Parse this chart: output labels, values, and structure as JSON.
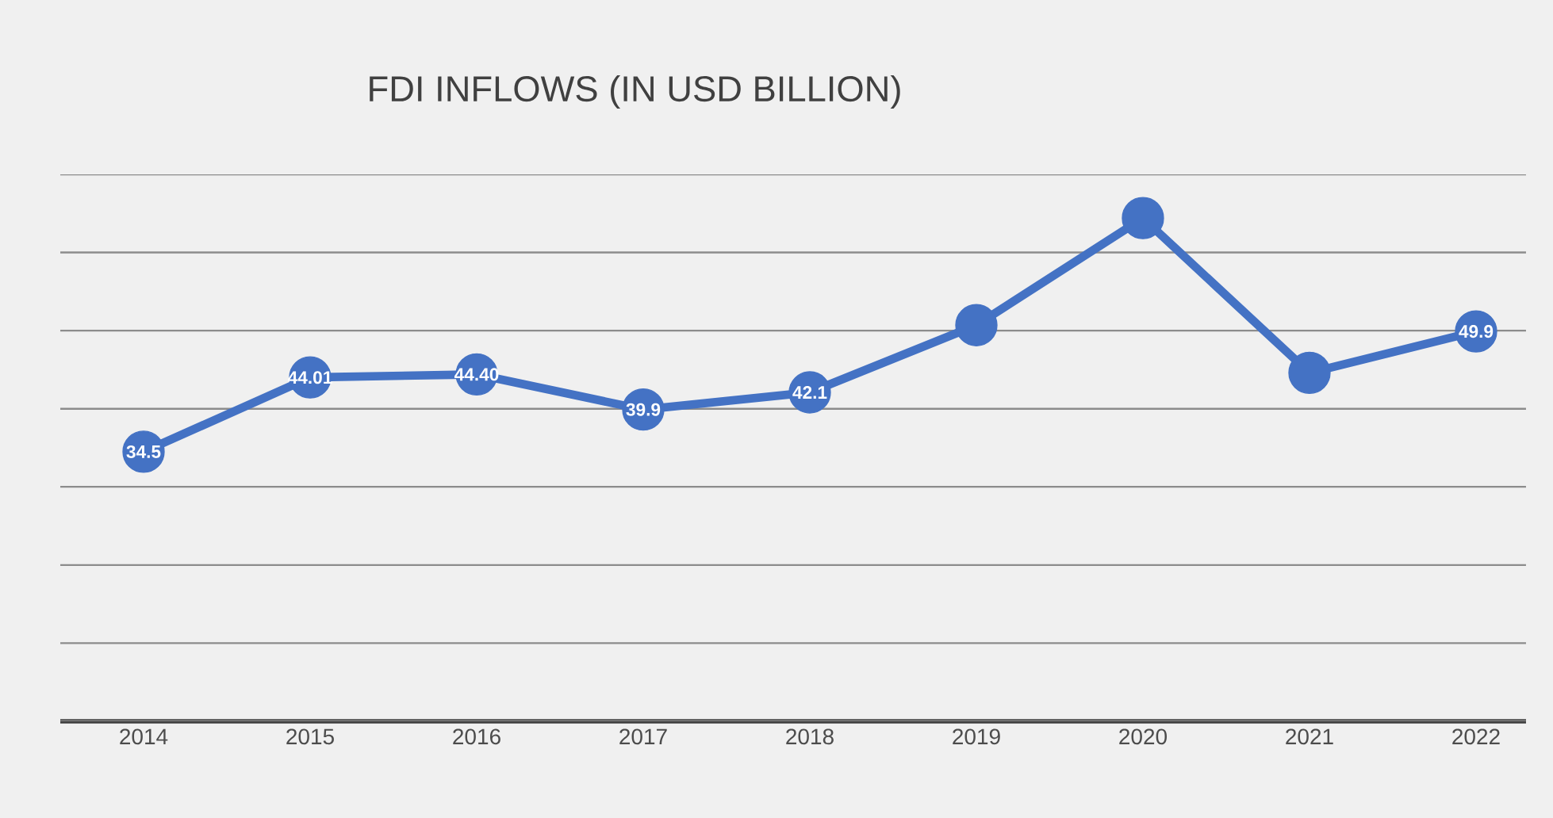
{
  "chart_data": {
    "type": "line",
    "title": "FDI INFLOWS (IN USD BILLION)",
    "categories": [
      "2014",
      "2015",
      "2016",
      "2017",
      "2018",
      "2019",
      "2020",
      "2021",
      "2022"
    ],
    "series": [
      {
        "color": "#4472c4",
        "values": [
          34.5,
          44.01,
          44.4,
          39.9,
          42.1,
          50.7,
          64.4,
          44.6,
          49.9
        ],
        "value_labels": [
          "34.5",
          "44.01",
          "44.40",
          "39.9",
          "42.1",
          null,
          null,
          null,
          "49.9"
        ]
      }
    ],
    "ylim": [
      0,
      70
    ],
    "yticks": [
      {
        "value": 0,
        "label": null
      },
      {
        "value": 10,
        "label": null
      },
      {
        "value": 20,
        "label": null
      },
      {
        "value": 30,
        "label": null
      },
      {
        "value": 40,
        "label": null
      },
      {
        "value": 50,
        "label": null
      },
      {
        "value": 60,
        "label": null
      },
      {
        "value": 70,
        "label": null
      }
    ],
    "grid": "y",
    "tick_labels": "x",
    "marker": "circle"
  }
}
